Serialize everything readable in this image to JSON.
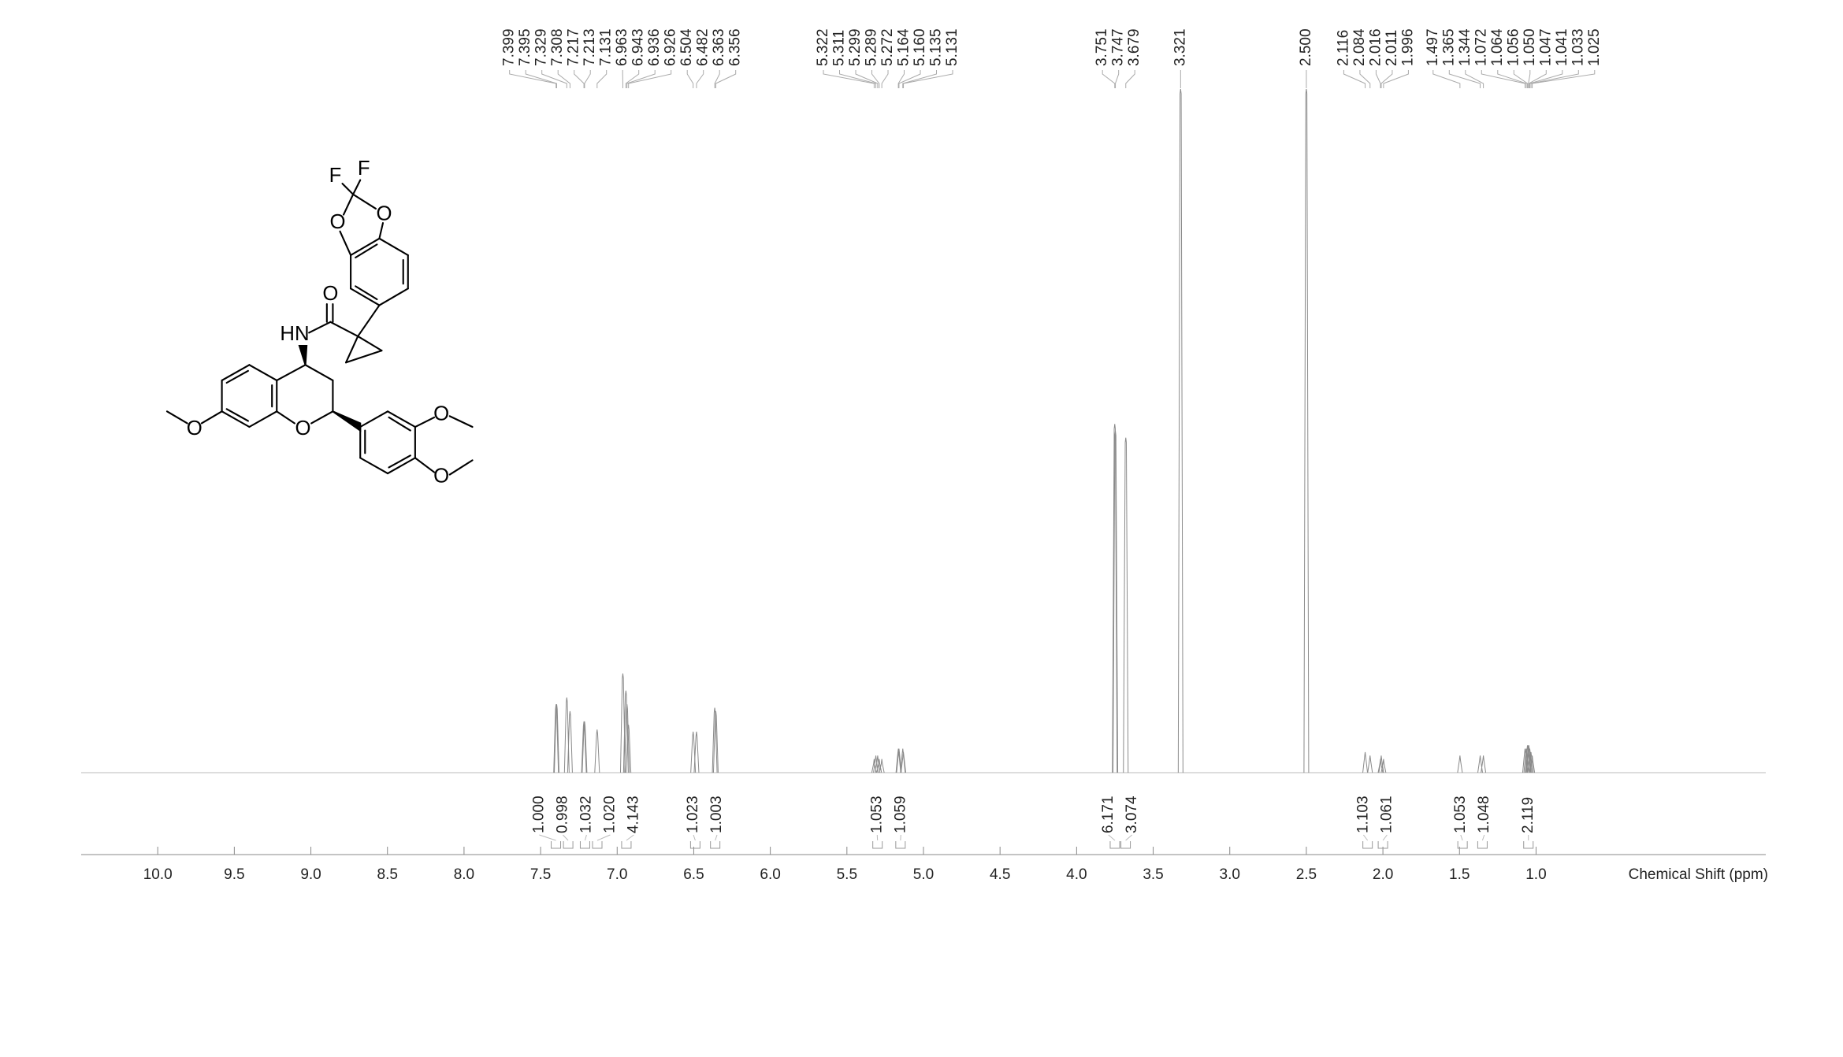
{
  "chart_data": {
    "type": "nmr",
    "x_label": "Chemical Shift (ppm)",
    "xlim": [
      10.5,
      -0.5
    ],
    "ylim": [
      0,
      1
    ],
    "xticks": [
      {
        "value": 10,
        "label": "10.0"
      },
      {
        "value": 9.5,
        "label": "9.5"
      },
      {
        "value": 9,
        "label": "9.0"
      },
      {
        "value": 8.5,
        "label": "8.5"
      },
      {
        "value": 8,
        "label": "8.0"
      },
      {
        "value": 7.5,
        "label": "7.5"
      },
      {
        "value": 7,
        "label": "7.0"
      },
      {
        "value": 6.5,
        "label": "6.5"
      },
      {
        "value": 6,
        "label": "6.0"
      },
      {
        "value": 5.5,
        "label": "5.5"
      },
      {
        "value": 5,
        "label": "5.0"
      },
      {
        "value": 4.5,
        "label": "4.5"
      },
      {
        "value": 4,
        "label": "4.0"
      },
      {
        "value": 3.5,
        "label": "3.5"
      },
      {
        "value": 3,
        "label": "3.0"
      },
      {
        "value": 2.5,
        "label": "2.5"
      },
      {
        "value": 2,
        "label": "2.0"
      },
      {
        "value": 1.5,
        "label": "1.5"
      },
      {
        "value": 1,
        "label": "1.0"
      }
    ],
    "peaks": {
      "x": [
        7.399,
        7.395,
        7.329,
        7.308,
        7.217,
        7.213,
        7.131,
        6.963,
        6.943,
        6.936,
        6.926,
        6.504,
        6.482,
        6.363,
        6.356,
        5.322,
        5.311,
        5.299,
        5.289,
        5.272,
        5.164,
        5.16,
        5.135,
        5.131,
        3.751,
        3.747,
        3.679,
        3.321,
        2.5,
        2.116,
        2.084,
        2.016,
        2.011,
        1.996,
        1.497,
        1.365,
        1.344,
        1.072,
        1.064,
        1.056,
        1.05,
        1.047,
        1.041,
        1.033,
        1.025
      ],
      "x_labels": [
        "7.399",
        "7.395",
        "7.329",
        "7.308",
        "7.217",
        "7.213",
        "7.131",
        "6.963",
        "6.943",
        "6.936",
        "6.926",
        "6.504",
        "6.482",
        "6.363",
        "6.356",
        "5.322",
        "5.311",
        "5.299",
        "5.289",
        "5.272",
        "5.164",
        "5.160",
        "5.135",
        "5.131",
        "3.751",
        "3.747",
        "3.679",
        "3.321",
        "2.500",
        "2.116",
        "2.084",
        "2.016",
        "2.011",
        "1.996",
        "1.497",
        "1.365",
        "1.344",
        "1.072",
        "1.064",
        "1.056",
        "1.050",
        "1.047",
        "1.041",
        "1.033",
        "1.025"
      ],
      "values": [
        0.1,
        0.1,
        0.11,
        0.09,
        0.075,
        0.075,
        0.063,
        0.145,
        0.12,
        0.1,
        0.07,
        0.06,
        0.06,
        0.095,
        0.09,
        0.02,
        0.025,
        0.025,
        0.02,
        0.02,
        0.035,
        0.035,
        0.035,
        0.03,
        0.51,
        0.5,
        0.49,
        1.0,
        1.0,
        0.03,
        0.025,
        0.02,
        0.025,
        0.02,
        0.025,
        0.025,
        0.025,
        0.035,
        0.035,
        0.04,
        0.04,
        0.04,
        0.035,
        0.03,
        0.025
      ]
    },
    "integrals": {
      "x": [
        7.4,
        7.32,
        7.21,
        7.13,
        6.94,
        6.49,
        6.36,
        5.3,
        5.15,
        3.75,
        3.68,
        2.1,
        2.0,
        1.48,
        1.35,
        1.05
      ],
      "values": [
        1.0,
        0.998,
        1.032,
        1.02,
        4.143,
        1.023,
        1.003,
        1.053,
        1.059,
        6.171,
        3.074,
        1.103,
        1.061,
        1.053,
        1.048,
        2.119
      ],
      "value_labels": [
        "1.000",
        "0.998",
        "1.032",
        "1.020",
        "4.143",
        "1.023",
        "1.003",
        "1.053",
        "1.059",
        "6.171",
        "3.074",
        "1.103",
        "1.061",
        "1.053",
        "1.048",
        "2.119"
      ]
    }
  },
  "structure": {
    "atoms": [
      "F",
      "F",
      "O",
      "O",
      "O",
      "HN",
      "O",
      "O",
      "O",
      "O"
    ]
  }
}
